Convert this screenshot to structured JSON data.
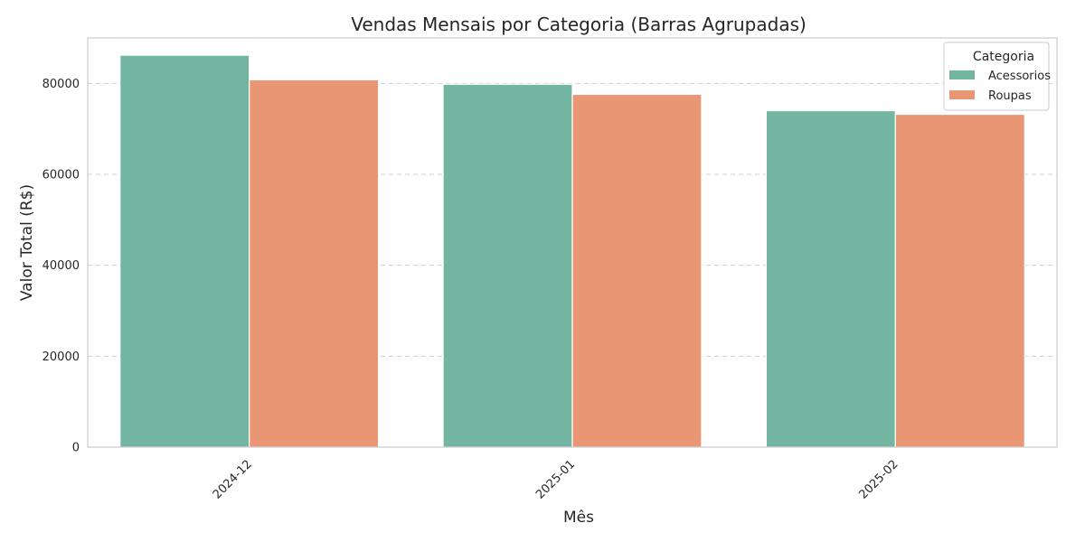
{
  "chart_data": {
    "type": "bar",
    "title": "Vendas Mensais por Categoria (Barras Agrupadas)",
    "xlabel": "Mês",
    "ylabel": "Valor Total (R$)",
    "categories": [
      "2024-12",
      "2025-01",
      "2025-02"
    ],
    "series": [
      {
        "name": "Acessorios",
        "values": [
          86200,
          79800,
          74000
        ],
        "color": "#72b6a1"
      },
      {
        "name": "Roupas",
        "values": [
          80800,
          77600,
          73200
        ],
        "color": "#e99675"
      }
    ],
    "ylim": [
      0,
      90000
    ],
    "yticks": [
      0,
      20000,
      40000,
      60000,
      80000
    ],
    "grid": true,
    "legend": {
      "title": "Categoria",
      "placement": "top-right"
    }
  }
}
